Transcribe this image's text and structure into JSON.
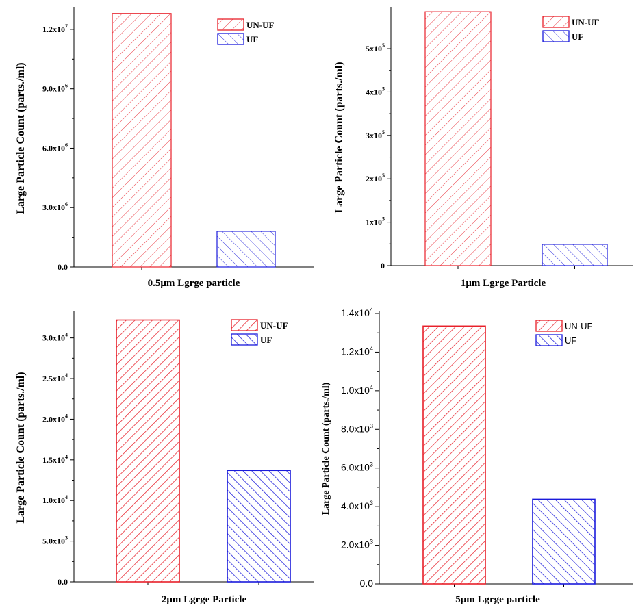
{
  "colors": {
    "unuf": "#e8202a",
    "uf": "#1a1adb",
    "axis": "#000000"
  },
  "chart_data": [
    {
      "type": "bar",
      "title": "",
      "xlabel": "0.5μm Lgrge particle",
      "ylabel": "Large Particle Count (parts./ml)",
      "categories": [
        "UN-UF",
        "UF"
      ],
      "values": [
        12800000,
        1800000
      ],
      "ylim": [
        0,
        13000000
      ],
      "yticks": [
        {
          "value": 0,
          "base": "0.0",
          "exp": ""
        },
        {
          "value": 3000000,
          "base": "3.0x10",
          "exp": "6"
        },
        {
          "value": 6000000,
          "base": "6.0x10",
          "exp": "6"
        },
        {
          "value": 9000000,
          "base": "9.0x10",
          "exp": "6"
        },
        {
          "value": 12000000,
          "base": "1.2x10",
          "exp": "7"
        }
      ],
      "legend": {
        "position": "top-right",
        "entries": [
          "UN-UF",
          "UF"
        ]
      }
    },
    {
      "type": "bar",
      "title": "",
      "xlabel": "1μm Lgrge Particle",
      "ylabel": "Large Particle Count (parts./ml)",
      "categories": [
        "UN-UF",
        "UF"
      ],
      "values": [
        585000,
        49000
      ],
      "ylim": [
        0,
        590000
      ],
      "yticks": [
        {
          "value": 0,
          "base": "0",
          "exp": ""
        },
        {
          "value": 100000,
          "base": "1x10",
          "exp": "5"
        },
        {
          "value": 200000,
          "base": "2x10",
          "exp": "5"
        },
        {
          "value": 300000,
          "base": "3x10",
          "exp": "5"
        },
        {
          "value": 400000,
          "base": "4x10",
          "exp": "5"
        },
        {
          "value": 500000,
          "base": "5x10",
          "exp": "5"
        }
      ],
      "legend": {
        "position": "top-right",
        "entries": [
          "UN-UF",
          "UF"
        ]
      }
    },
    {
      "type": "bar",
      "title": "",
      "xlabel": "2μm Lgrge Particle",
      "ylabel": "Large Particle Count (parts./ml)",
      "categories": [
        "UN-UF",
        "UF"
      ],
      "values": [
        32200,
        13700
      ],
      "ylim": [
        0,
        33000
      ],
      "yticks": [
        {
          "value": 0,
          "base": "0.0",
          "exp": ""
        },
        {
          "value": 5000,
          "base": "5.0x10",
          "exp": "3"
        },
        {
          "value": 10000,
          "base": "1.0x10",
          "exp": "4"
        },
        {
          "value": 15000,
          "base": "1.5x10",
          "exp": "4"
        },
        {
          "value": 20000,
          "base": "2.0x10",
          "exp": "4"
        },
        {
          "value": 25000,
          "base": "2.5x10",
          "exp": "4"
        },
        {
          "value": 30000,
          "base": "3.0x10",
          "exp": "4"
        }
      ],
      "legend": {
        "position": "top-right",
        "entries": [
          "UN-UF",
          "UF"
        ]
      }
    },
    {
      "type": "bar",
      "title": "",
      "xlabel": "5μm Lgrge particle",
      "ylabel": "Large Particle Count (parts./ml)",
      "categories": [
        "UN-UF",
        "UF"
      ],
      "values": [
        13350,
        4380
      ],
      "ylim": [
        0,
        14000
      ],
      "yticks": [
        {
          "value": 0,
          "base": "0.0",
          "exp": ""
        },
        {
          "value": 2000,
          "base": "2.0x10",
          "exp": "3"
        },
        {
          "value": 4000,
          "base": "4.0x10",
          "exp": "3"
        },
        {
          "value": 6000,
          "base": "6.0x10",
          "exp": "3"
        },
        {
          "value": 8000,
          "base": "8.0x10",
          "exp": "3"
        },
        {
          "value": 10000,
          "base": "1.0x10",
          "exp": "4"
        },
        {
          "value": 12000,
          "base": "1.2x10",
          "exp": "4"
        },
        {
          "value": 14000,
          "base": "1.4x10",
          "exp": "4"
        }
      ],
      "legend": {
        "position": "top-right",
        "entries": [
          "UN-UF",
          "UF"
        ]
      }
    }
  ]
}
